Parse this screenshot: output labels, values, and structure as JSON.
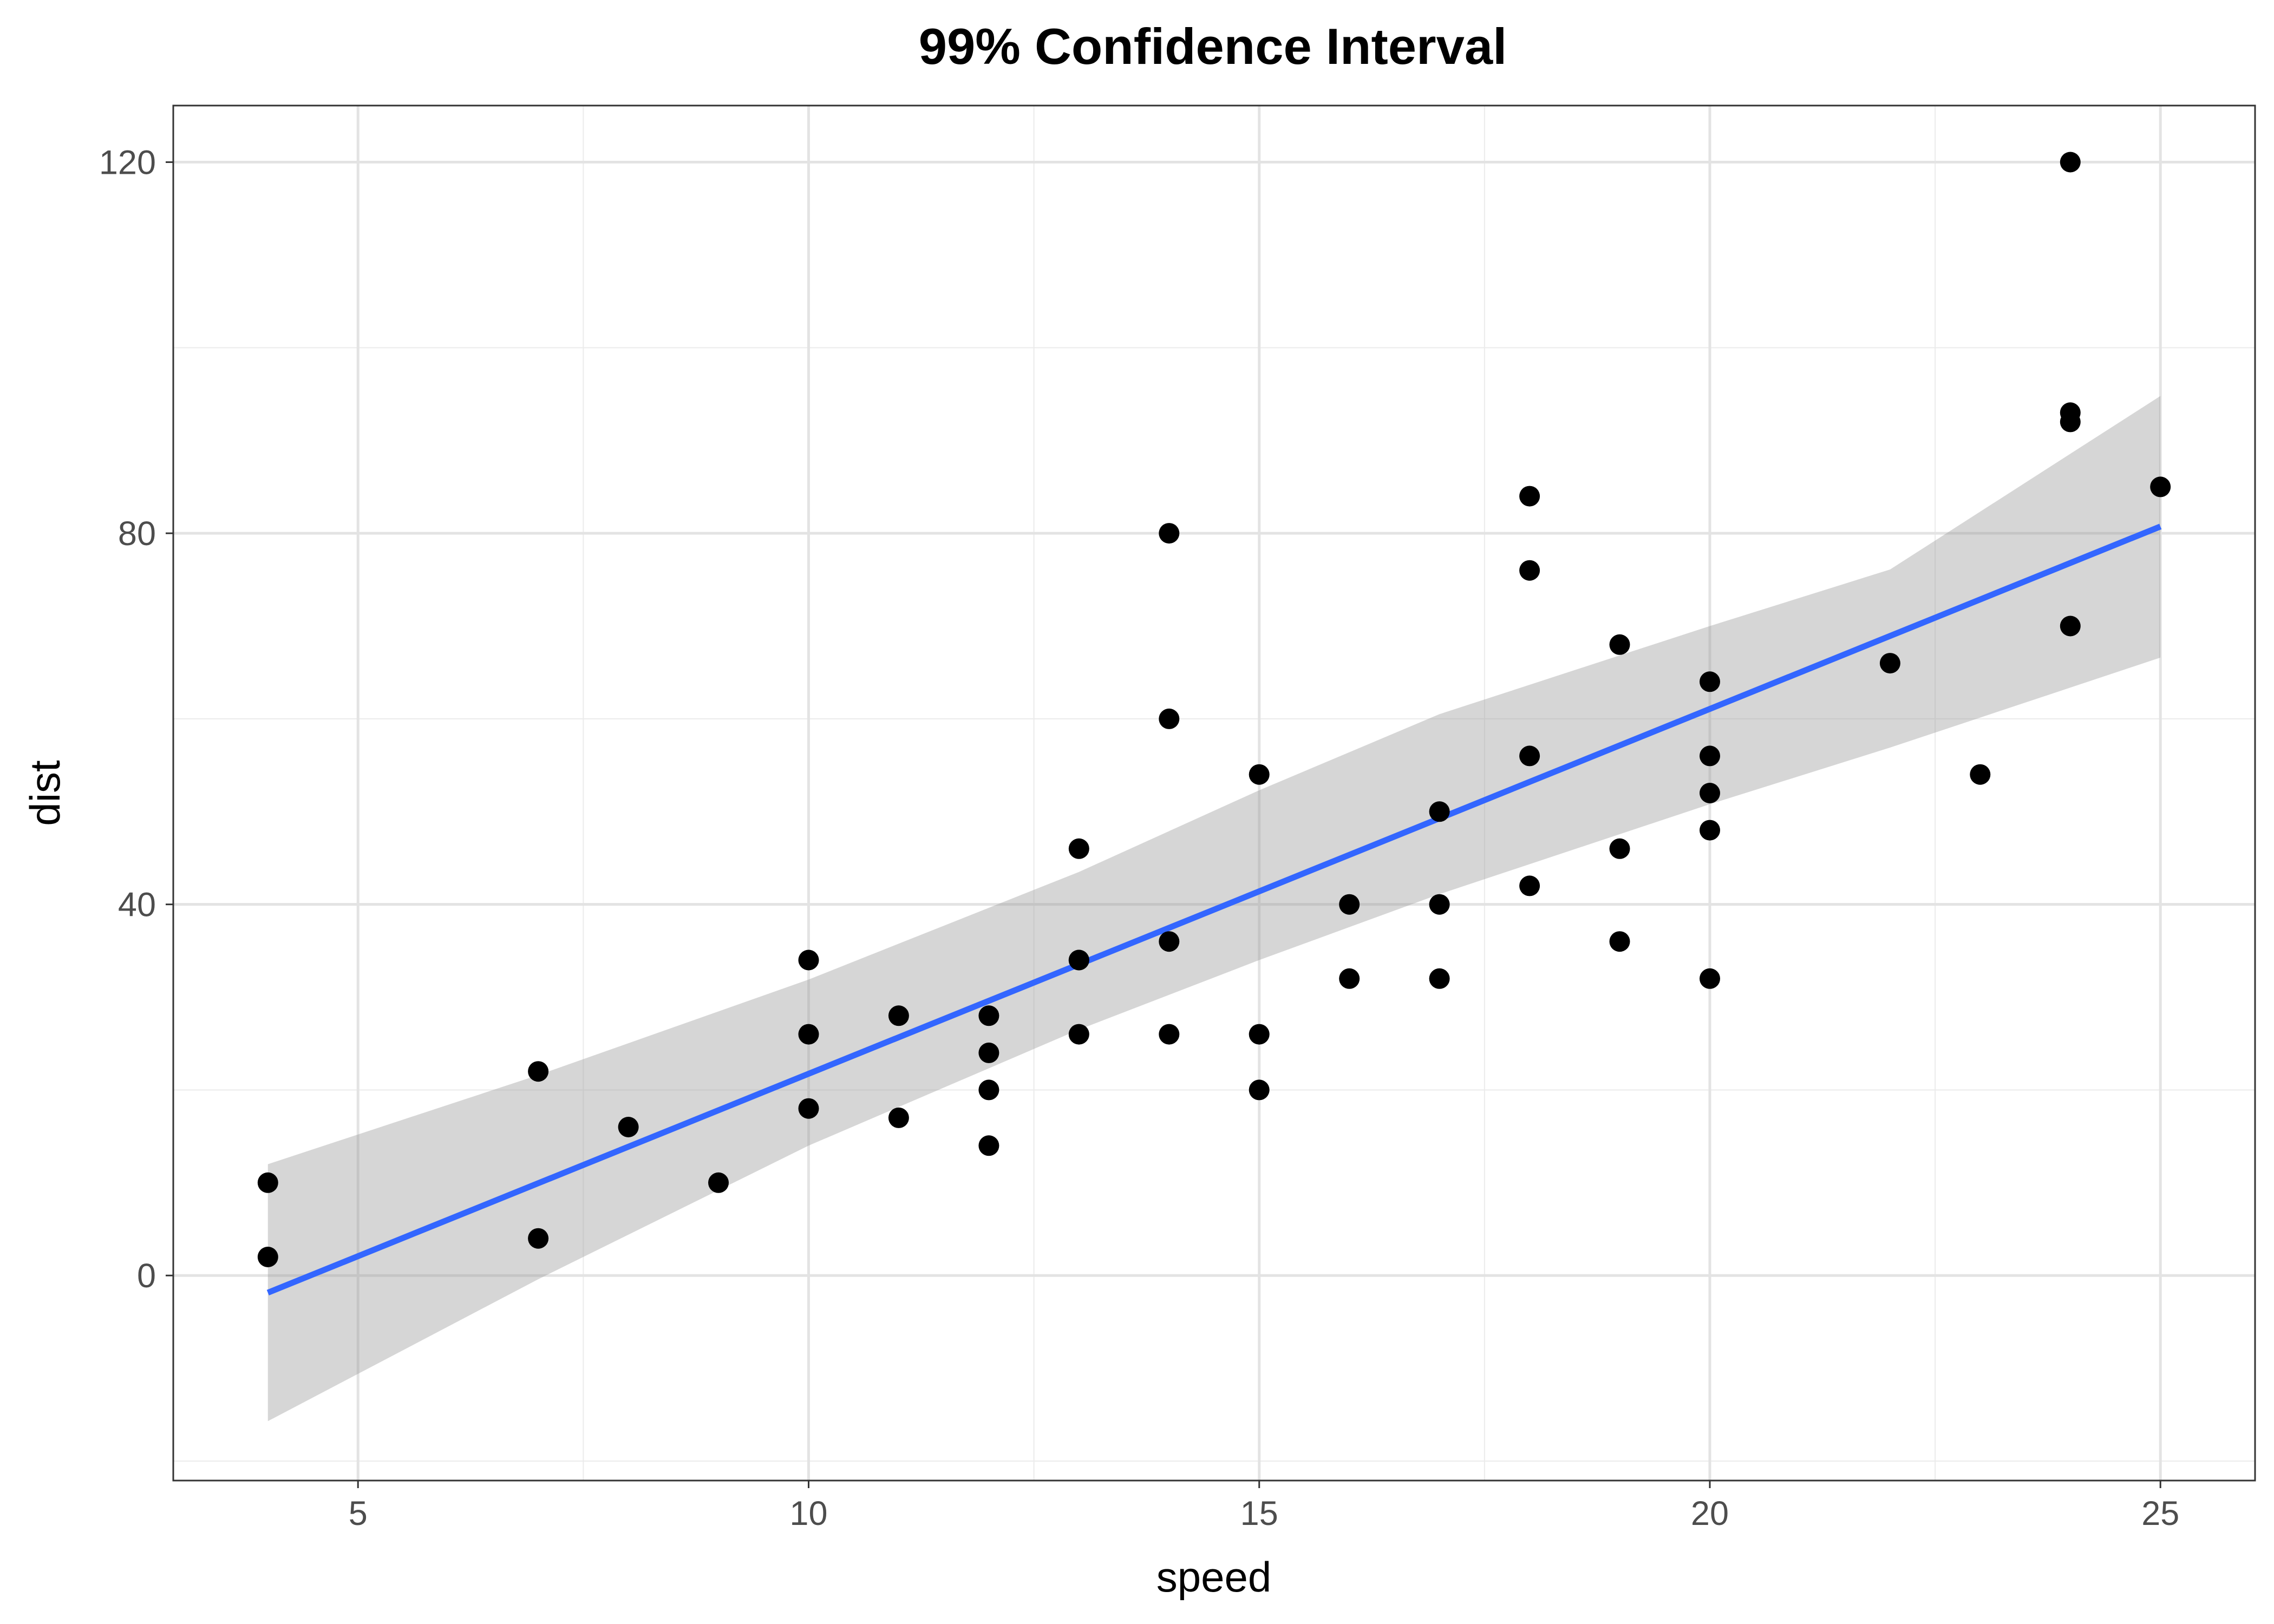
{
  "chart_data": {
    "type": "scatter",
    "title": "99% Confidence Interval",
    "xlabel": "speed",
    "ylabel": "dist",
    "xlim": [
      2.95,
      26.05
    ],
    "ylim": [
      -22.1,
      126.1
    ],
    "x_ticks": [
      5,
      10,
      15,
      20,
      25
    ],
    "y_ticks": [
      0,
      40,
      80,
      120
    ],
    "x_minor_ticks": [
      7.5,
      12.5,
      17.5,
      22.5
    ],
    "y_minor_ticks": [
      -20,
      20,
      60,
      100
    ],
    "grid": true,
    "legend": "none",
    "series": [
      {
        "type": "scatter",
        "x": [
          4,
          4,
          7,
          7,
          8,
          9,
          10,
          10,
          10,
          11,
          11,
          12,
          12,
          12,
          12,
          13,
          13,
          13,
          13,
          14,
          14,
          14,
          14,
          15,
          15,
          15,
          16,
          16,
          17,
          17,
          17,
          18,
          18,
          18,
          18,
          19,
          19,
          19,
          20,
          20,
          20,
          20,
          20,
          22,
          23,
          24,
          24,
          24,
          24,
          25
        ],
        "y": [
          2,
          10,
          4,
          22,
          16,
          10,
          18,
          26,
          34,
          17,
          28,
          14,
          20,
          24,
          28,
          26,
          34,
          34,
          46,
          26,
          36,
          60,
          80,
          20,
          26,
          54,
          32,
          40,
          32,
          40,
          50,
          42,
          56,
          76,
          84,
          36,
          46,
          68,
          32,
          48,
          52,
          56,
          64,
          66,
          54,
          70,
          92,
          93,
          120,
          85
        ],
        "color": "#000000"
      },
      {
        "type": "line",
        "x": [
          4,
          25
        ],
        "y": [
          -1.85,
          80.73
        ],
        "color": "#3366ff"
      },
      {
        "type": "area",
        "x": [
          4,
          7,
          10,
          13,
          15,
          17,
          20,
          22,
          25
        ],
        "lower": [
          -15.7,
          -0.4,
          14.0,
          26.5,
          34.0,
          41.1,
          50.8,
          56.9,
          66.6
        ],
        "upper": [
          12.0,
          21.6,
          31.9,
          43.5,
          52.3,
          60.5,
          70.0,
          76.1,
          94.8
        ],
        "color": "#999999"
      }
    ]
  }
}
